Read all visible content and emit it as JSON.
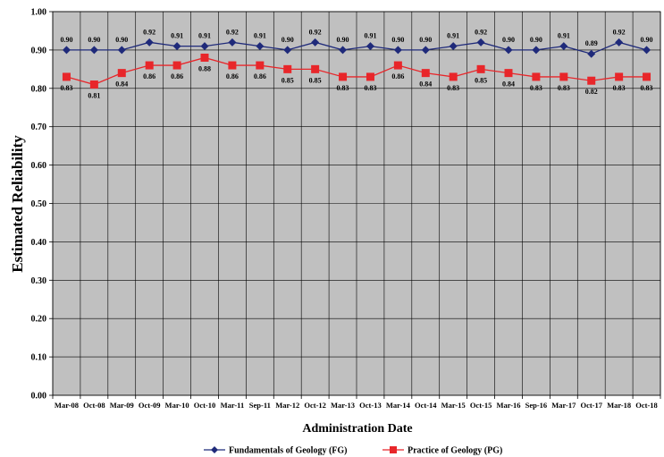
{
  "chart_data": {
    "type": "line",
    "title": "",
    "xlabel": "Administration Date",
    "ylabel": "Estimated Reliability",
    "ylim": [
      0,
      1
    ],
    "yticks": [
      "0.00",
      "0.10",
      "0.20",
      "0.30",
      "0.40",
      "0.50",
      "0.60",
      "0.70",
      "0.80",
      "0.90",
      "1.00"
    ],
    "grid": true,
    "legend_position": "bottom",
    "categories": [
      "Mar-08",
      "Oct-08",
      "Mar-09",
      "Oct-09",
      "Mar-10",
      "Oct-10",
      "Mar-11",
      "Sep-11",
      "Mar-12",
      "Oct-12",
      "Mar-13",
      "Oct-13",
      "Mar-14",
      "Oct-14",
      "Mar-15",
      "Oct-15",
      "Mar-16",
      "Sep-16",
      "Mar-17",
      "Oct-17",
      "Mar-18",
      "Oct-18"
    ],
    "series": [
      {
        "name": "Fundamentals of Geology (FG)",
        "color": "#1f2a7a",
        "marker": "diamond",
        "values": [
          0.9,
          0.9,
          0.9,
          0.92,
          0.91,
          0.91,
          0.92,
          0.91,
          0.9,
          0.92,
          0.9,
          0.91,
          0.9,
          0.9,
          0.91,
          0.92,
          0.9,
          0.9,
          0.91,
          0.89,
          0.92,
          0.9
        ],
        "labels": [
          "0.90",
          "0.90",
          "0.90",
          "0.92",
          "0.91",
          "0.91",
          "0.92",
          "0.91",
          "0.90",
          "0.92",
          "0.90",
          "0.91",
          "0.90",
          "0.90",
          "0.91",
          "0.92",
          "0.90",
          "0.90",
          "0.91",
          "0.89",
          "0.92",
          "0.90"
        ]
      },
      {
        "name": "Practice of Geology (PG)",
        "color": "#e8262a",
        "marker": "square",
        "values": [
          0.83,
          0.81,
          0.84,
          0.86,
          0.86,
          0.88,
          0.86,
          0.86,
          0.85,
          0.85,
          0.83,
          0.83,
          0.86,
          0.84,
          0.83,
          0.85,
          0.84,
          0.83,
          0.83,
          0.82,
          0.83,
          0.83
        ],
        "labels": [
          "0.83",
          "0.81",
          "0.84",
          "0.86",
          "0.86",
          "0.88",
          "0.86",
          "0.86",
          "0.85",
          "0.85",
          "0.83",
          "0.83",
          "0.86",
          "0.84",
          "0.83",
          "0.85",
          "0.84",
          "0.83",
          "0.83",
          "0.82",
          "0.83",
          "0.83"
        ]
      }
    ],
    "plot_background": "#c0c0c0"
  }
}
